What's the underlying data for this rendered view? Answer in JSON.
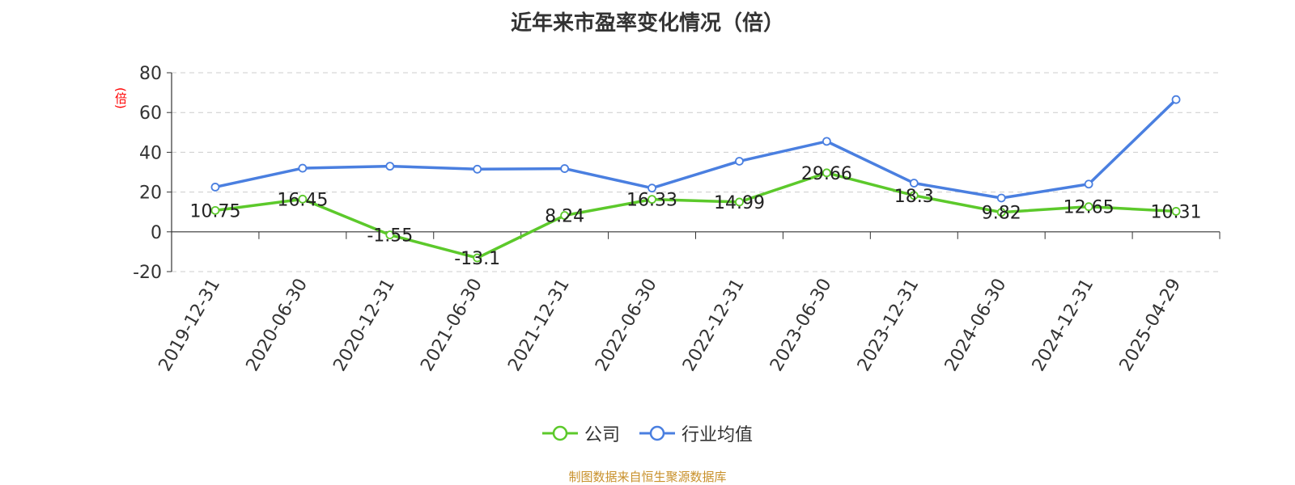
{
  "title": "近年来市盈率变化情况（倍）",
  "unit": "(倍)",
  "source": "制图数据来自恒生聚源数据库",
  "legend": [
    {
      "name": "公司",
      "color": "#5cc92b"
    },
    {
      "name": "行业均值",
      "color": "#4a7fe0"
    }
  ],
  "chart_data": {
    "type": "line",
    "title": "近年来市盈率变化情况（倍）",
    "ylabel": "(倍)",
    "ylim": [
      -20,
      80
    ],
    "yticks": [
      -20,
      0,
      20,
      40,
      60,
      80
    ],
    "grid": true,
    "legend_position": "bottom",
    "categories": [
      "2019-12-31",
      "2020-06-30",
      "2020-12-31",
      "2021-06-30",
      "2021-12-31",
      "2022-06-30",
      "2022-12-31",
      "2023-06-30",
      "2023-12-31",
      "2024-06-30",
      "2024-12-31",
      "2025-04-29"
    ],
    "series": [
      {
        "name": "公司",
        "color": "#5cc92b",
        "values": [
          10.75,
          16.45,
          -1.55,
          -13.1,
          8.24,
          16.33,
          14.99,
          29.66,
          18.3,
          9.82,
          12.65,
          10.31
        ],
        "show_labels": true
      },
      {
        "name": "行业均值",
        "color": "#4a7fe0",
        "values": [
          22.5,
          32,
          33,
          31.5,
          31.8,
          22,
          35.5,
          45.5,
          24.5,
          17,
          24,
          66.5
        ],
        "show_labels": false
      }
    ]
  }
}
